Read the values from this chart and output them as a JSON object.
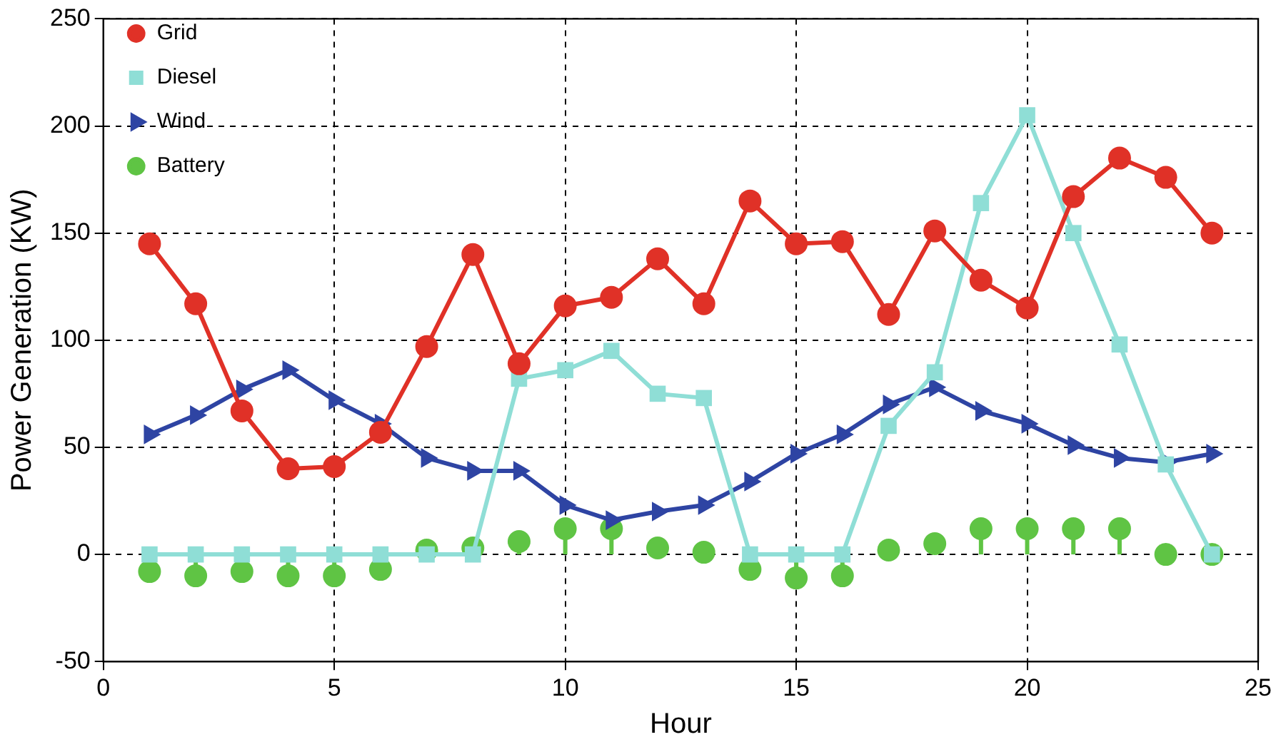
{
  "chart_data": {
    "type": "line",
    "xlabel": "Hour",
    "ylabel": "Power Generation (KW)",
    "x": [
      1,
      2,
      3,
      4,
      5,
      6,
      7,
      8,
      9,
      10,
      11,
      12,
      13,
      14,
      15,
      16,
      17,
      18,
      19,
      20,
      21,
      22,
      23,
      24
    ],
    "series": [
      {
        "name": "Grid",
        "color": "#e03127",
        "marker": "circle",
        "values": [
          145,
          117,
          67,
          40,
          41,
          57,
          97,
          140,
          89,
          116,
          120,
          138,
          117,
          165,
          145,
          146,
          112,
          151,
          128,
          115,
          167,
          185,
          176,
          150
        ]
      },
      {
        "name": "Diesel",
        "color": "#8fded6",
        "marker": "square",
        "values": [
          0,
          0,
          0,
          0,
          0,
          0,
          0,
          0,
          82,
          86,
          95,
          75,
          73,
          0,
          0,
          0,
          60,
          85,
          164,
          205,
          150,
          98,
          42,
          0
        ]
      },
      {
        "name": "Wind",
        "color": "#2e44a3",
        "marker": "triangle",
        "values": [
          56,
          65,
          77,
          86,
          72,
          61,
          45,
          39,
          39,
          23,
          16,
          20,
          23,
          34,
          47,
          56,
          70,
          78,
          67,
          61,
          51,
          45,
          43,
          47
        ]
      },
      {
        "name": "Battery",
        "color": "#5fc444",
        "marker": "circle",
        "type": "lollipop",
        "values": [
          -8,
          -10,
          -8,
          -10,
          -10,
          -7,
          2,
          3,
          6,
          12,
          12,
          3,
          1,
          -7,
          -11,
          -10,
          2,
          5,
          12,
          12,
          12,
          12,
          0,
          0
        ]
      }
    ],
    "xlim": [
      0,
      25
    ],
    "xticks": [
      0,
      5,
      10,
      15,
      20,
      25
    ],
    "ylim": [
      -50,
      250
    ],
    "yticks": [
      -50,
      0,
      50,
      100,
      150,
      200,
      250
    ],
    "grid": true,
    "legend": "top left"
  }
}
